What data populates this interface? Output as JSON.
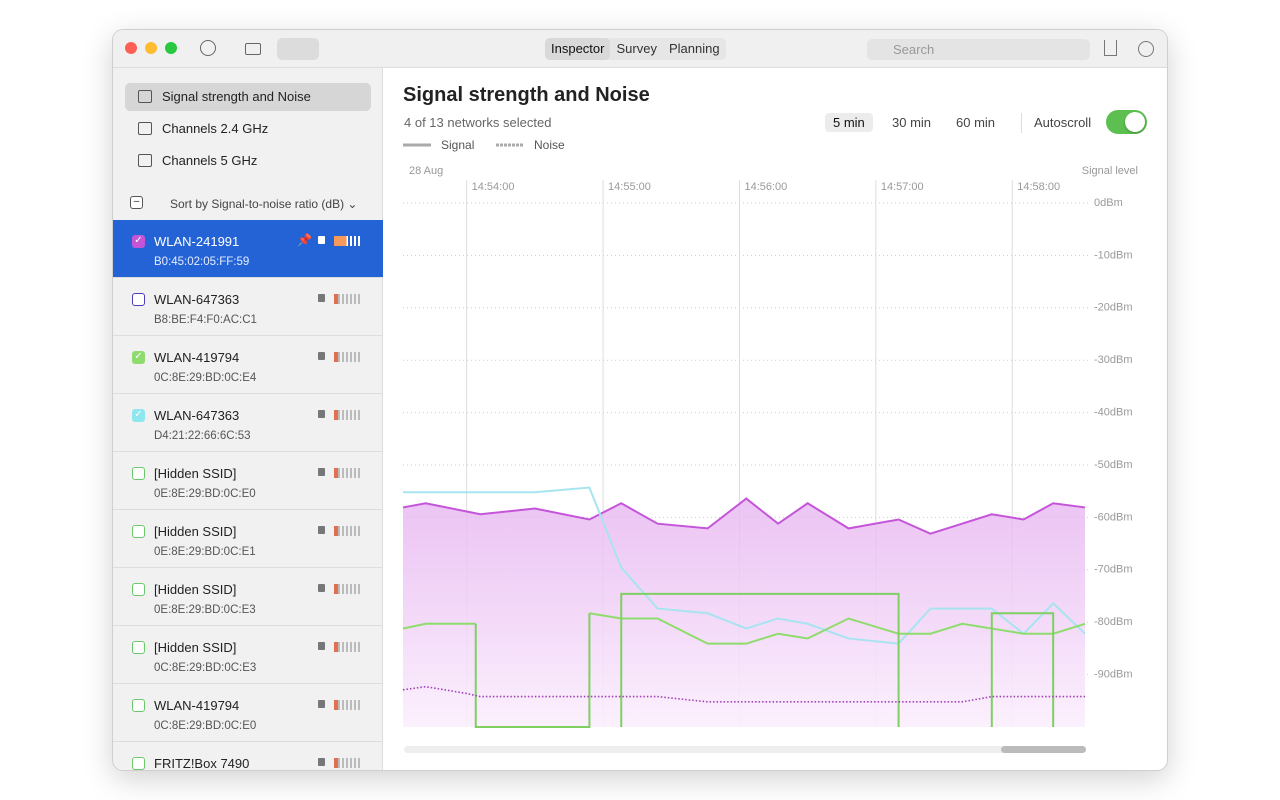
{
  "toolbar": {
    "tabs": [
      "Inspector",
      "Survey",
      "Planning"
    ],
    "active_tab": 0,
    "search_placeholder": "Search"
  },
  "sidebar": {
    "views": [
      "Signal strength and Noise",
      "Channels 2.4 GHz",
      "Channels 5 GHz"
    ],
    "active_view": 0,
    "sort_label": "Sort by Signal-to-noise ratio (dB)",
    "networks": [
      {
        "name": "WLAN-241991",
        "mac": "B0:45:02:05:FF:59",
        "checked": true,
        "color": "#c455d9",
        "selected": true,
        "pinned": true
      },
      {
        "name": "WLAN-647363",
        "mac": "B8:BE:F4:F0:AC:C1",
        "checked": false,
        "color": "#4b3fb8",
        "selected": false,
        "pinned": false
      },
      {
        "name": "WLAN-419794",
        "mac": "0C:8E:29:BD:0C:E4",
        "checked": true,
        "color": "#8fdc6e",
        "selected": false,
        "pinned": false
      },
      {
        "name": "WLAN-647363",
        "mac": "D4:21:22:66:6C:53",
        "checked": true,
        "color": "#8ee6ee",
        "selected": false,
        "pinned": false
      },
      {
        "name": "[Hidden SSID]",
        "mac": "0E:8E:29:BD:0C:E0",
        "checked": false,
        "color": "#6cc86c",
        "selected": false,
        "pinned": false
      },
      {
        "name": "[Hidden SSID]",
        "mac": "0E:8E:29:BD:0C:E1",
        "checked": false,
        "color": "#6cc86c",
        "selected": false,
        "pinned": false
      },
      {
        "name": "[Hidden SSID]",
        "mac": "0E:8E:29:BD:0C:E3",
        "checked": false,
        "color": "#6cc86c",
        "selected": false,
        "pinned": false
      },
      {
        "name": "[Hidden SSID]",
        "mac": "0C:8E:29:BD:0C:E3",
        "checked": false,
        "color": "#6cc86c",
        "selected": false,
        "pinned": false
      },
      {
        "name": "WLAN-419794",
        "mac": "0C:8E:29:BD:0C:E0",
        "checked": false,
        "color": "#6cc86c",
        "selected": false,
        "pinned": false
      },
      {
        "name": "FRITZ!Box 7490",
        "checked": false,
        "color": "#6cc86c",
        "selected": false,
        "pinned": false
      }
    ]
  },
  "header": {
    "title": "Signal strength and Noise",
    "subtitle": "4 of 13 networks selected",
    "ranges": [
      "5 min",
      "30 min",
      "60 min"
    ],
    "active_range": 0,
    "autoscroll": "Autoscroll",
    "autoscroll_on": true
  },
  "chart_data": {
    "type": "line",
    "date_label": "28 Aug",
    "ylabel": "Signal level",
    "legend": [
      {
        "label": "Signal",
        "style": "solid"
      },
      {
        "label": "Noise",
        "style": "dashed"
      }
    ],
    "xlim": [
      "14:53:32",
      "14:58:32"
    ],
    "xticks": [
      "14:54:00",
      "14:55:00",
      "14:56:00",
      "14:57:00",
      "14:58:00"
    ],
    "ylim": [
      -100,
      0
    ],
    "yticks": [
      {
        "value": 0,
        "label": "0dBm"
      },
      {
        "value": -10,
        "label": "-10dBm"
      },
      {
        "value": -20,
        "label": "-20dBm"
      },
      {
        "value": -30,
        "label": "-30dBm"
      },
      {
        "value": -40,
        "label": "-40dBm"
      },
      {
        "value": -50,
        "label": "-50dBm"
      },
      {
        "value": -60,
        "label": "-60dBm"
      },
      {
        "value": -70,
        "label": "-70dBm"
      },
      {
        "value": -80,
        "label": "-80dBm"
      },
      {
        "value": -90,
        "label": "-90dBm"
      }
    ],
    "grid": true,
    "series": [
      {
        "color": "#c455d9",
        "style": "solid",
        "fill": true,
        "x": [
          "14:53:32",
          "14:53:42",
          "14:54:06",
          "14:54:30",
          "14:54:54",
          "14:55:08",
          "14:55:24",
          "14:55:46",
          "14:56:03",
          "14:56:17",
          "14:56:30",
          "14:56:48",
          "14:57:10",
          "14:57:24",
          "14:57:51",
          "14:58:05",
          "14:58:18",
          "14:58:32"
        ],
        "values": [
          -58.1,
          -57.3,
          -59.4,
          -58.3,
          -60.4,
          -57.3,
          -61.2,
          -62.1,
          -56.4,
          -61.2,
          -57.3,
          -62.1,
          -60.4,
          -63.1,
          -59.4,
          -60.4,
          -57.3,
          -58.1
        ]
      },
      {
        "color": "#a8e4f0",
        "style": "solid",
        "fill": false,
        "x": [
          "14:53:32",
          "14:54:30",
          "14:54:54",
          "14:55:08",
          "14:55:24",
          "14:55:46",
          "14:56:03",
          "14:56:17",
          "14:56:30",
          "14:56:48",
          "14:57:10",
          "14:57:24",
          "14:57:51",
          "14:58:05",
          "14:58:18",
          "14:58:32"
        ],
        "values": [
          -55.2,
          -55.2,
          -54.3,
          -69.6,
          -77.4,
          -78.3,
          -81.2,
          -79.3,
          -80.3,
          -83.1,
          -84.1,
          -77.4,
          -77.4,
          -82.2,
          -76.4,
          -82.2
        ]
      },
      {
        "color": "#8fdc6e",
        "style": "solid",
        "fill": false,
        "x": [
          "14:53:32",
          "14:53:42",
          "14:54:04",
          null,
          "14:54:54",
          "14:55:08",
          "14:55:24",
          "14:55:46",
          "14:56:03",
          "14:56:17",
          "14:56:30",
          "14:56:48",
          "14:57:10",
          "14:57:24",
          "14:57:38",
          "14:58:05",
          "14:58:18",
          "14:58:32"
        ],
        "values": [
          -81.2,
          -80.3,
          -80.3,
          null,
          -78.3,
          -79.3,
          -79.3,
          -84.1,
          -84.1,
          -82.2,
          -83.1,
          -79.3,
          -82.2,
          -82.2,
          -80.3,
          -82.2,
          -82.2,
          -80.3
        ]
      },
      {
        "color": "#7fcf63",
        "style": "solid",
        "fill": false,
        "x": [
          "14:54:04",
          "14:54:04",
          "14:54:54",
          "14:54:54",
          null,
          "14:55:08",
          "14:55:08",
          "14:57:10",
          "14:57:10",
          null,
          "14:57:51",
          "14:57:51",
          "14:58:18",
          "14:58:18"
        ],
        "values": [
          -80.3,
          -100,
          -100,
          -78.3,
          null,
          -100,
          -74.6,
          -74.6,
          -100,
          null,
          -100,
          -78.3,
          -78.3,
          -100
        ]
      },
      {
        "color": "#a040b8",
        "style": "dotted",
        "fill": false,
        "x": [
          "14:53:32",
          "14:53:42",
          "14:54:00",
          "14:54:06",
          "14:55:24",
          "14:55:46",
          "14:57:38",
          "14:57:51",
          "14:58:32"
        ],
        "values": [
          -92.9,
          -92.3,
          -93.6,
          -94.2,
          -94.2,
          -95.2,
          -95.2,
          -94.2,
          -94.2
        ]
      }
    ]
  }
}
